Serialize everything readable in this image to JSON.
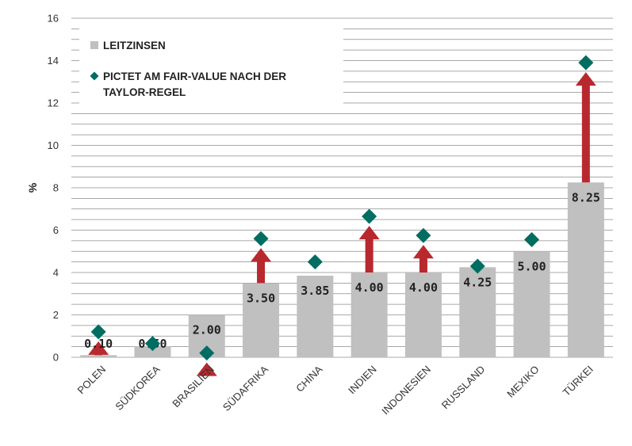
{
  "chart_data": {
    "type": "bar",
    "ylabel": "%",
    "ylim": [
      0,
      16
    ],
    "yticks": [
      0,
      2,
      4,
      6,
      8,
      10,
      12,
      14,
      16
    ],
    "grid": true,
    "legend_position": "top-left",
    "categories": [
      "POLEN",
      "SÜDKOREA",
      "BRASILIEN",
      "SÜDAFRIKA",
      "CHINA",
      "INDIEN",
      "INDONESIEN",
      "RUSSLAND",
      "MEXIKO",
      "TÜRKEI"
    ],
    "series": [
      {
        "name": "LEITZINSEN",
        "type": "bar",
        "color": "#c0c0c0",
        "values": [
          0.1,
          0.5,
          2.0,
          3.5,
          3.85,
          4.0,
          4.0,
          4.25,
          5.0,
          8.25
        ],
        "labels": [
          "0.10",
          "0.50",
          "2.00",
          "3.50",
          "3.85",
          "4.00",
          "4.00",
          "4.25",
          "5.00",
          "8.25"
        ]
      },
      {
        "name": "PICTET AM FAIR-VALUE NACH DER TAYLOR-REGEL",
        "legend_lines": [
          "PICTET AM FAIR-VALUE NACH DER",
          "TAYLOR-REGEL"
        ],
        "type": "scatter",
        "marker": "diamond",
        "color": "#006d62",
        "values": [
          1.2,
          0.65,
          0.2,
          5.6,
          4.5,
          6.65,
          5.75,
          4.3,
          5.55,
          13.9
        ]
      }
    ],
    "arrows": {
      "up_color": "#b8292f",
      "down_color": "#4dbb6e"
    }
  }
}
